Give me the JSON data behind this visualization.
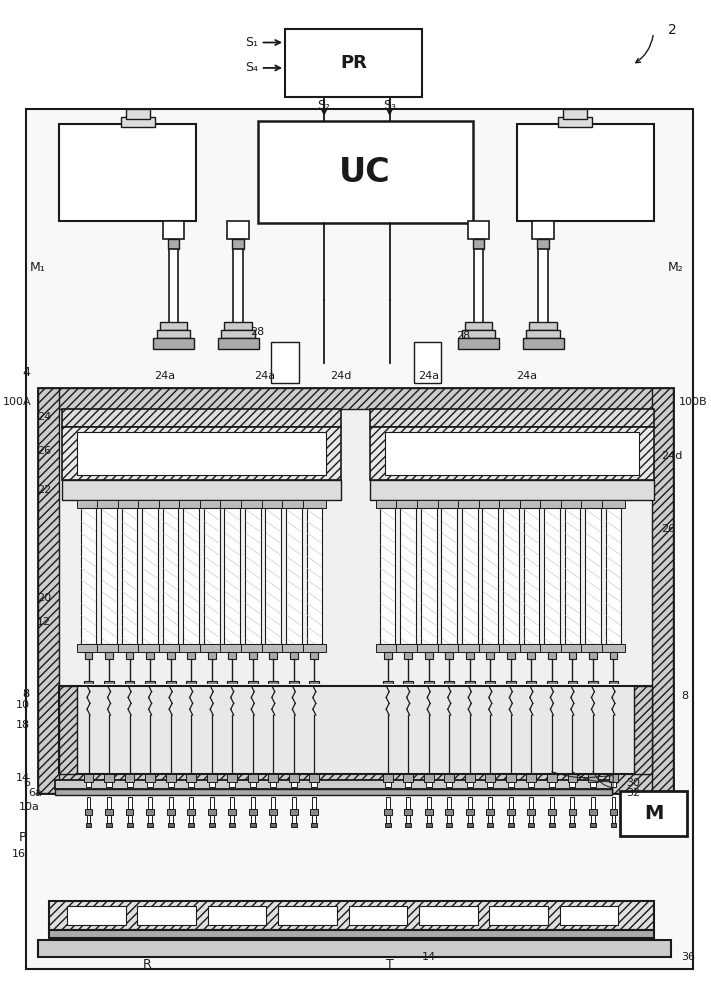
{
  "bg_color": "#ffffff",
  "lc": "#1a1a1a",
  "lc_gray": "#888888",
  "labels": {
    "PR": "PR",
    "UC": "UC",
    "M": "M",
    "S1": "S₁",
    "S4": "S₄",
    "S2": "S₂",
    "S3": "S₃",
    "M1": "M₁",
    "M2": "M₂",
    "n2": "2",
    "n4": "4",
    "n6": "6",
    "n6a": "6a",
    "n8": "8",
    "n10": "10",
    "n10a": "10a",
    "n12": "12",
    "n14": "14",
    "n16": "16",
    "n18": "18",
    "n20": "20",
    "n22": "22",
    "n24": "24",
    "n24a": "24a",
    "n24d": "24d",
    "n26": "26",
    "n28": "28",
    "n30": "30",
    "n32": "32",
    "n36": "36",
    "n100A": "100A",
    "n100B": "100B",
    "P": "P",
    "R": "R",
    "T": "T"
  }
}
